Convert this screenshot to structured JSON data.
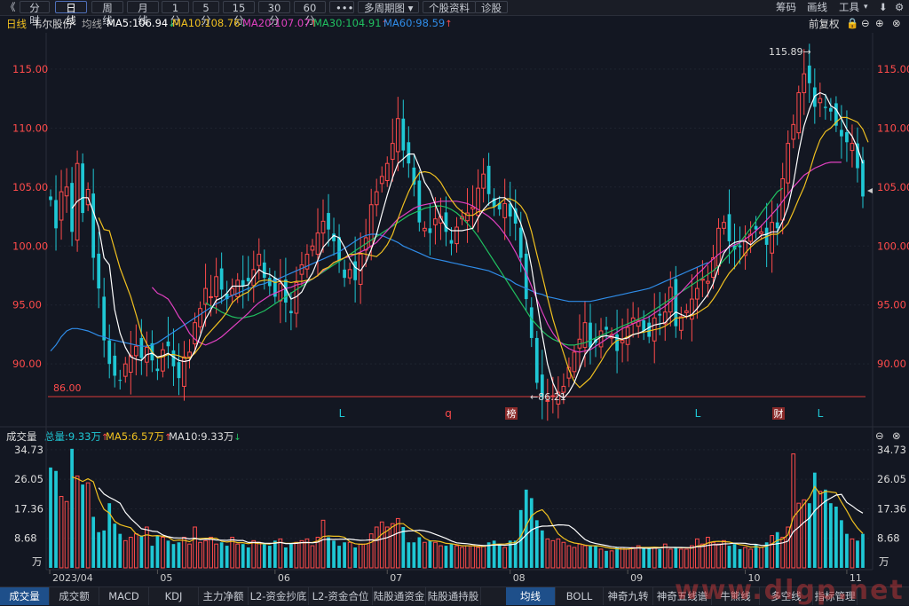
{
  "toolbar": {
    "back_symbol": "《",
    "tabs": [
      "分时",
      "日线",
      "周线",
      "月线",
      "1分",
      "5分",
      "15分",
      "30分",
      "60分",
      "•••"
    ],
    "active_tab": "日线",
    "multi_period": "多周期图 ▾",
    "individual_info": "个股资料",
    "diagnose": "诊股",
    "right_items": [
      "筹码",
      "画线",
      "工具"
    ]
  },
  "ma_bar": {
    "period": "日线",
    "stock_name": "韦尔股份",
    "ma_label": "均线",
    "ma5": "MA5:106.94",
    "ma10": "MA10:108.76",
    "ma20": "MA20:107.07",
    "ma30": "MA30:104.91",
    "ma60": "MA60:98.59",
    "restore": "前复权"
  },
  "colors": {
    "up": "#ff4b4b",
    "down": "#1fc7d4",
    "ma5": "#ffffff",
    "ma10": "#f0c020",
    "ma20": "#e040c0",
    "ma30": "#20c060",
    "ma60": "#2f8ce8",
    "vol_ma5": "#f0c020",
    "vol_ma10": "#ffffff"
  },
  "price_axis": {
    "ticks": [
      "115.00",
      "110.00",
      "105.00",
      "100.00",
      "95.00",
      "90.00"
    ],
    "low_line_label": "86.00",
    "high_marker": "115.89→",
    "low_marker": "←86.21"
  },
  "event_markers": [
    {
      "text": "L",
      "type": "plain"
    },
    {
      "text": "q",
      "type": "plain-red"
    },
    {
      "text": "榜",
      "type": "box"
    },
    {
      "text": "L",
      "type": "plain"
    },
    {
      "text": "财",
      "type": "box"
    },
    {
      "text": "L",
      "type": "plain"
    }
  ],
  "volume_bar": {
    "title": "成交量",
    "total": "总量:9.33万",
    "ma5": "MA5:6.57万",
    "ma10": "MA10:9.33万"
  },
  "volume_axis": {
    "ticks": [
      "34.73",
      "26.05",
      "17.36",
      "8.68"
    ],
    "unit": "万"
  },
  "date_axis": [
    "2023/04",
    "05",
    "06",
    "07",
    "08",
    "09",
    "10",
    "11"
  ],
  "bottom_tabs_left": [
    "成交量",
    "成交额",
    "MACD",
    "KDJ",
    "主力净额",
    "L2-资金抄底",
    "L2-资金合位",
    "陆股通资金",
    "陆股通持股"
  ],
  "bottom_tabs_right": [
    "均线",
    "BOLL",
    "神奇九转",
    "神奇五线谱",
    "牛熊线",
    "多空线",
    "指标管理"
  ],
  "watermark": "www.dlgp.net",
  "chart_data": {
    "type": "candlestick",
    "price_range": [
      85.5,
      118
    ],
    "volume_range": [
      0,
      36
    ],
    "closes": [
      103.9,
      101.5,
      104.6,
      105,
      101.2,
      107,
      102.8,
      104.8,
      99,
      96.4,
      92,
      90,
      89,
      88.6,
      90,
      90.7,
      91.5,
      90.5,
      91.4,
      90.3,
      89.4,
      91.2,
      91.5,
      89.8,
      88.8,
      90.6,
      91,
      93.5,
      94.7,
      96.4,
      95.7,
      97.4,
      96.3,
      95.5,
      96.4,
      97.1,
      96.6,
      97,
      98,
      99.3,
      97.3,
      96.6,
      95.7,
      96.8,
      95.2,
      94.3,
      96.9,
      98.4,
      99.3,
      100,
      101.1,
      102.1,
      101.4,
      100.4,
      98.7,
      97.3,
      98,
      97.1,
      99.3,
      100.7,
      103.5,
      104.6,
      105.9,
      107,
      108.7,
      110.8,
      108.1,
      107,
      105.2,
      102,
      101.5,
      101.1,
      102.3,
      102.5,
      101.2,
      100.2,
      101.6,
      102.5,
      102.8,
      103.3,
      104.9,
      106.1,
      104.4,
      103.3,
      103.1,
      103.6,
      102.5,
      101.9,
      99,
      95.5,
      92.2,
      88.4,
      87.2,
      86.9,
      87.3,
      87.6,
      88.1,
      89.7,
      91,
      92.1,
      93.5,
      91.4,
      91.8,
      92.8,
      92.9,
      92.5,
      91.1,
      92,
      93.1,
      93.9,
      93.7,
      92.8,
      92.3,
      93.9,
      94.1,
      94.4,
      96.5,
      93.2,
      94,
      94.5,
      95.5,
      96.4,
      97.2,
      97,
      99,
      101.5,
      102,
      100.4,
      99.7,
      99.9,
      100.4,
      101,
      101.4,
      101.2,
      100.1,
      102,
      101.5,
      105.7,
      108.7,
      110.3,
      113,
      114.6,
      113.8,
      111.8,
      112.5,
      111.7,
      111.4,
      110.2,
      109.3,
      108.8,
      108.7,
      106.6,
      104.2
    ],
    "volumes": [
      29.5,
      28.5,
      21,
      19.5,
      35,
      27,
      24.5,
      25,
      15,
      10.5,
      11,
      19,
      13,
      10,
      8,
      9,
      10,
      9.5,
      12,
      6.5,
      9.5,
      9,
      8,
      7,
      7.5,
      9,
      7,
      12,
      7.5,
      8,
      9,
      7,
      7.5,
      6.5,
      9,
      7,
      7,
      6,
      8,
      7.5,
      7,
      6.5,
      8,
      8.5,
      6,
      7,
      7.5,
      8,
      8.5,
      6.5,
      9,
      14,
      9,
      8,
      6.5,
      7.5,
      7.5,
      6,
      7,
      7,
      10,
      12,
      13.5,
      12,
      13,
      14.5,
      12,
      7.5,
      7.5,
      9,
      7.5,
      8,
      7.5,
      6.5,
      6.5,
      7,
      6.5,
      6,
      6.5,
      6.5,
      6,
      6.5,
      7.5,
      8,
      7,
      6,
      8,
      8,
      17,
      23,
      20.5,
      14,
      11,
      8.5,
      8,
      8.5,
      7.5,
      6.5,
      6,
      7,
      6.5,
      6.5,
      6.5,
      5.5,
      5,
      5,
      6,
      6,
      5.5,
      6,
      6.5,
      6,
      6,
      6,
      5.5,
      7,
      5.5,
      6,
      5.5,
      5.5,
      6.5,
      8.5,
      7,
      9,
      7.5,
      7,
      8,
      6.5,
      7,
      5.5,
      6,
      5.5,
      7,
      6,
      7.5,
      9.5,
      10.5,
      9,
      12,
      33.5,
      19,
      20,
      19,
      28,
      22.5,
      23,
      19,
      18,
      14,
      10,
      8.5,
      8,
      10
    ],
    "ma5": [
      null,
      null,
      null,
      null,
      103.2,
      103.8,
      104.1,
      104.1,
      102.9,
      101.6,
      99,
      98.4,
      94.6,
      92.6,
      91.4,
      90.6,
      90.4,
      90.3,
      90.8,
      90.9,
      90.6,
      90.7,
      90.9,
      90.6,
      90.3,
      90.2,
      90.3,
      91.1,
      92.4,
      93.8,
      94.6,
      95.4,
      95.6,
      96.0,
      96.6,
      96.6,
      96.6,
      96.7,
      97.4,
      98.0,
      97.7,
      97.6,
      97.3,
      97.0,
      96.4,
      95.5,
      95.7,
      96.1,
      97.0,
      97.7,
      98.8,
      99.9,
      100.4,
      100.9,
      100.7,
      99.9,
      98.9,
      98.2,
      97.9,
      98.6,
      99.7,
      101.0,
      102.7,
      104.3,
      105.8,
      107.0,
      107.4,
      107.8,
      107.8,
      106.7,
      105.4,
      104.7,
      103.5,
      102.4,
      101.6,
      101.3,
      101.3,
      101.3,
      101.4,
      101.5,
      102.4,
      103.1,
      103.6,
      103.9,
      104.1,
      104.1,
      103.7,
      102.9,
      101.9,
      100.5,
      98.2,
      95.3,
      92.5,
      90.0,
      88.4,
      87.4,
      87.1,
      87.6,
      88.4,
      89.6,
      90.8,
      91.4,
      92.0,
      92.3,
      92.4,
      92.3,
      92.2,
      92.1,
      92.2,
      92.5,
      92.6,
      92.8,
      93.1,
      93.3,
      93.4,
      93.5,
      94.0,
      94.4,
      94.2,
      94.0,
      94.2,
      94.7,
      95.3,
      95.9,
      96.8,
      98.2,
      99.4,
      100.0,
      100.3,
      100.4,
      100.4,
      100.1,
      100.5,
      100.9,
      101.0,
      101.2,
      101.2,
      102.1,
      103.3,
      105.3,
      108.0,
      110.2,
      111.6,
      112.7,
      113.0,
      112.8,
      111.9,
      111.6,
      110.8,
      109.9,
      109.3,
      108.3,
      107.0
    ],
    "ma10": [
      null,
      null,
      null,
      null,
      null,
      null,
      null,
      null,
      null,
      102.4,
      101.4,
      101.3,
      99.7,
      98.1,
      96.9,
      95.7,
      94.2,
      92.6,
      91.7,
      91.0,
      90.5,
      90.6,
      90.8,
      90.8,
      90.7,
      90.5,
      90.5,
      90.9,
      91.5,
      92.3,
      92.8,
      93.3,
      93.8,
      94.4,
      95.2,
      95.6,
      95.9,
      96.1,
      96.6,
      97.0,
      97.1,
      97.1,
      96.9,
      97.0,
      97.0,
      96.9,
      97.0,
      97.0,
      97.1,
      97.2,
      97.5,
      98.0,
      98.2,
      98.6,
      98.8,
      99.0,
      99.3,
      99.3,
      99.4,
      99.3,
      99.2,
      99.1,
      99.5,
      100.1,
      101.0,
      102.3,
      103.5,
      104.6,
      105.5,
      106.2,
      106.3,
      106.2,
      105.9,
      105.4,
      104.6,
      103.9,
      103.3,
      102.9,
      102.6,
      102.6,
      102.9,
      103.0,
      103.2,
      103.3,
      103.6,
      104.0,
      104.0,
      103.8,
      103.4,
      102.7,
      101.2,
      99.3,
      97.5,
      95.6,
      93.8,
      92.3,
      90.9,
      89.5,
      88.5,
      88.0,
      88.4,
      88.8,
      89.5,
      90.2,
      91.0,
      91.6,
      92.0,
      92.1,
      92.3,
      92.5,
      92.6,
      92.7,
      92.8,
      92.9,
      93.0,
      93.2,
      93.5,
      93.9,
      93.9,
      94.0,
      94.1,
      94.3,
      94.6,
      94.9,
      95.5,
      96.2,
      97.0,
      97.7,
      98.2,
      98.8,
      99.4,
      99.9,
      100.3,
      100.6,
      100.8,
      101.0,
      101.0,
      101.4,
      101.9,
      102.9,
      104.0,
      105.0,
      106.3,
      107.8,
      109.0,
      109.7,
      110.0,
      110.5,
      110.9,
      110.9,
      110.7,
      110.5,
      109.9,
      108.8
    ],
    "ma20": [
      null,
      null,
      null,
      null,
      null,
      null,
      null,
      null,
      null,
      null,
      null,
      null,
      null,
      null,
      null,
      null,
      null,
      null,
      null,
      96.5,
      96,
      95.8,
      95.5,
      94.8,
      94,
      93.4,
      92.6,
      92.1,
      91.8,
      91.6,
      91.8,
      92,
      92.3,
      92.7,
      93.1,
      93.5,
      93.9,
      94.3,
      94.8,
      95.2,
      95.5,
      95.8,
      96,
      96.2,
      96.4,
      96.5,
      96.7,
      96.8,
      97,
      97.2,
      97.5,
      97.9,
      98.2,
      98.6,
      98.8,
      99,
      99.1,
      99.3,
      99.5,
      99.7,
      100,
      100.3,
      100.8,
      101.3,
      101.8,
      102.3,
      102.6,
      102.9,
      103.2,
      103.4,
      103.5,
      103.6,
      103.7,
      103.8,
      103.8,
      103.8,
      103.8,
      103.7,
      103.6,
      103.4,
      103.1,
      102.8,
      102.5,
      102.1,
      101.6,
      101,
      100.3,
      99.5,
      98.6,
      97.7,
      96.6,
      95.5,
      94.4,
      93.4,
      92.6,
      92,
      91.6,
      91.3,
      91.1,
      91,
      91.1,
      91.2,
      91.5,
      91.8,
      92.1,
      92.4,
      92.7,
      93,
      93.2,
      93.4,
      93.6,
      93.8,
      94,
      94.3,
      94.6,
      94.9,
      95.3,
      95.7,
      96.1,
      96.6,
      97.1,
      97.6,
      98,
      98.5,
      98.9,
      99.3,
      99.6,
      99.9,
      100.1,
      100.3,
      100.6,
      100.9,
      101.3,
      101.7,
      102.2,
      102.7,
      103.2,
      103.8,
      104.4,
      105,
      105.5,
      106,
      106.3,
      106.6,
      106.8,
      107,
      107.1,
      107.1,
      107.1
    ],
    "ma30": [
      null,
      null,
      null,
      null,
      null,
      null,
      null,
      null,
      null,
      null,
      null,
      null,
      null,
      null,
      null,
      null,
      null,
      null,
      null,
      null,
      null,
      null,
      null,
      null,
      null,
      null,
      null,
      null,
      null,
      95.2,
      94.9,
      94.7,
      94.4,
      94.2,
      94,
      93.9,
      93.9,
      94,
      94.1,
      94.3,
      94.5,
      94.8,
      95.1,
      95.4,
      95.7,
      96,
      96.3,
      96.6,
      96.9,
      97.2,
      97.5,
      97.8,
      98.1,
      98.4,
      98.7,
      99,
      99.3,
      99.6,
      99.9,
      100.2,
      100.5,
      100.8,
      101.1,
      101.4,
      101.7,
      102,
      102.3,
      102.6,
      102.8,
      103,
      103.2,
      103.3,
      103.4,
      103.4,
      103.3,
      103.1,
      102.8,
      102.4,
      101.9,
      101.4,
      100.8,
      100.1,
      99.4,
      98.7,
      98,
      97.3,
      96.6,
      95.9,
      95.2,
      94.5,
      93.8,
      93.3,
      92.8,
      92.4,
      92.1,
      91.9,
      91.7,
      91.6,
      91.6,
      91.7,
      91.8,
      92,
      92.2,
      92.4,
      92.6,
      92.8,
      93,
      93.2,
      93.4,
      93.6,
      93.8,
      94,
      94.3,
      94.6,
      94.9,
      95.2,
      95.5,
      95.8,
      96.1,
      96.4,
      96.7,
      97,
      97.3,
      97.6,
      97.9,
      98.3,
      98.8,
      99.3,
      99.8,
      100.3,
      100.9,
      101.5,
      102.1,
      102.8,
      103.4,
      104,
      104.6,
      104.9
    ],
    "ma60": [
      91.1,
      91.6,
      92.3,
      92.8,
      93,
      93,
      92.9,
      92.8,
      92.6,
      92.4,
      92.3,
      92.1,
      92,
      91.9,
      91.8,
      91.7,
      91.6,
      91.5,
      91.5,
      91.6,
      91.8,
      92.1,
      92.4,
      92.7,
      93,
      93.3,
      93.6,
      93.9,
      94.2,
      94.5,
      94.8,
      95.1,
      95.3,
      95.6,
      95.8,
      96,
      96.2,
      96.4,
      96.5,
      96.7,
      96.8,
      97,
      97.1,
      97.3,
      97.5,
      97.7,
      97.9,
      98.1,
      98.3,
      98.5,
      98.7,
      98.9,
      99.1,
      99.3,
      99.5,
      99.8,
      100.1,
      100.4,
      100.7,
      100.9,
      101,
      101,
      100.9,
      100.7,
      100.5,
      100.3,
      100,
      99.8,
      99.6,
      99.4,
      99.2,
      99,
      98.9,
      98.8,
      98.7,
      98.6,
      98.5,
      98.4,
      98.3,
      98.2,
      98.1,
      98,
      97.9,
      97.7,
      97.5,
      97.3,
      97.1,
      96.8,
      96.6,
      96.4,
      96.2,
      96,
      95.9,
      95.7,
      95.6,
      95.5,
      95.4,
      95.3,
      95.3,
      95.3,
      95.3,
      95.3,
      95.4,
      95.5,
      95.6,
      95.7,
      95.8,
      95.9,
      96,
      96.1,
      96.2,
      96.3,
      96.4,
      96.6,
      96.8,
      97,
      97.2,
      97.4,
      97.6,
      97.8,
      98,
      98.2,
      98.4,
      98.6
    ]
  }
}
